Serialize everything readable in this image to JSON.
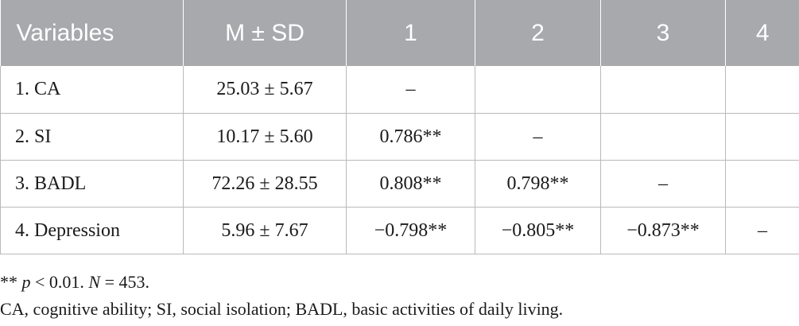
{
  "table": {
    "headers": [
      "Variables",
      "M ± SD",
      "1",
      "2",
      "3",
      "4"
    ],
    "rows": [
      [
        "1.  CA",
        "25.03 ± 5.67",
        "–",
        "",
        "",
        ""
      ],
      [
        "2.  SI",
        "10.17 ± 5.60",
        "0.786**",
        "–",
        "",
        ""
      ],
      [
        "3.  BADL",
        "72.26 ± 28.55",
        "0.808**",
        "0.798**",
        "–",
        ""
      ],
      [
        "4.  Depression",
        "5.96 ± 7.67",
        "−0.798**",
        "−0.805**",
        "−0.873**",
        "–"
      ]
    ]
  },
  "notes": {
    "sig_prefix": "** ",
    "sig_p": "p",
    "sig_mid": " < 0.01. ",
    "sig_n": "N",
    "sig_end": " = 453.",
    "abbreviations": "CA, cognitive ability; SI, social isolation; BADL, basic activities of daily living."
  }
}
